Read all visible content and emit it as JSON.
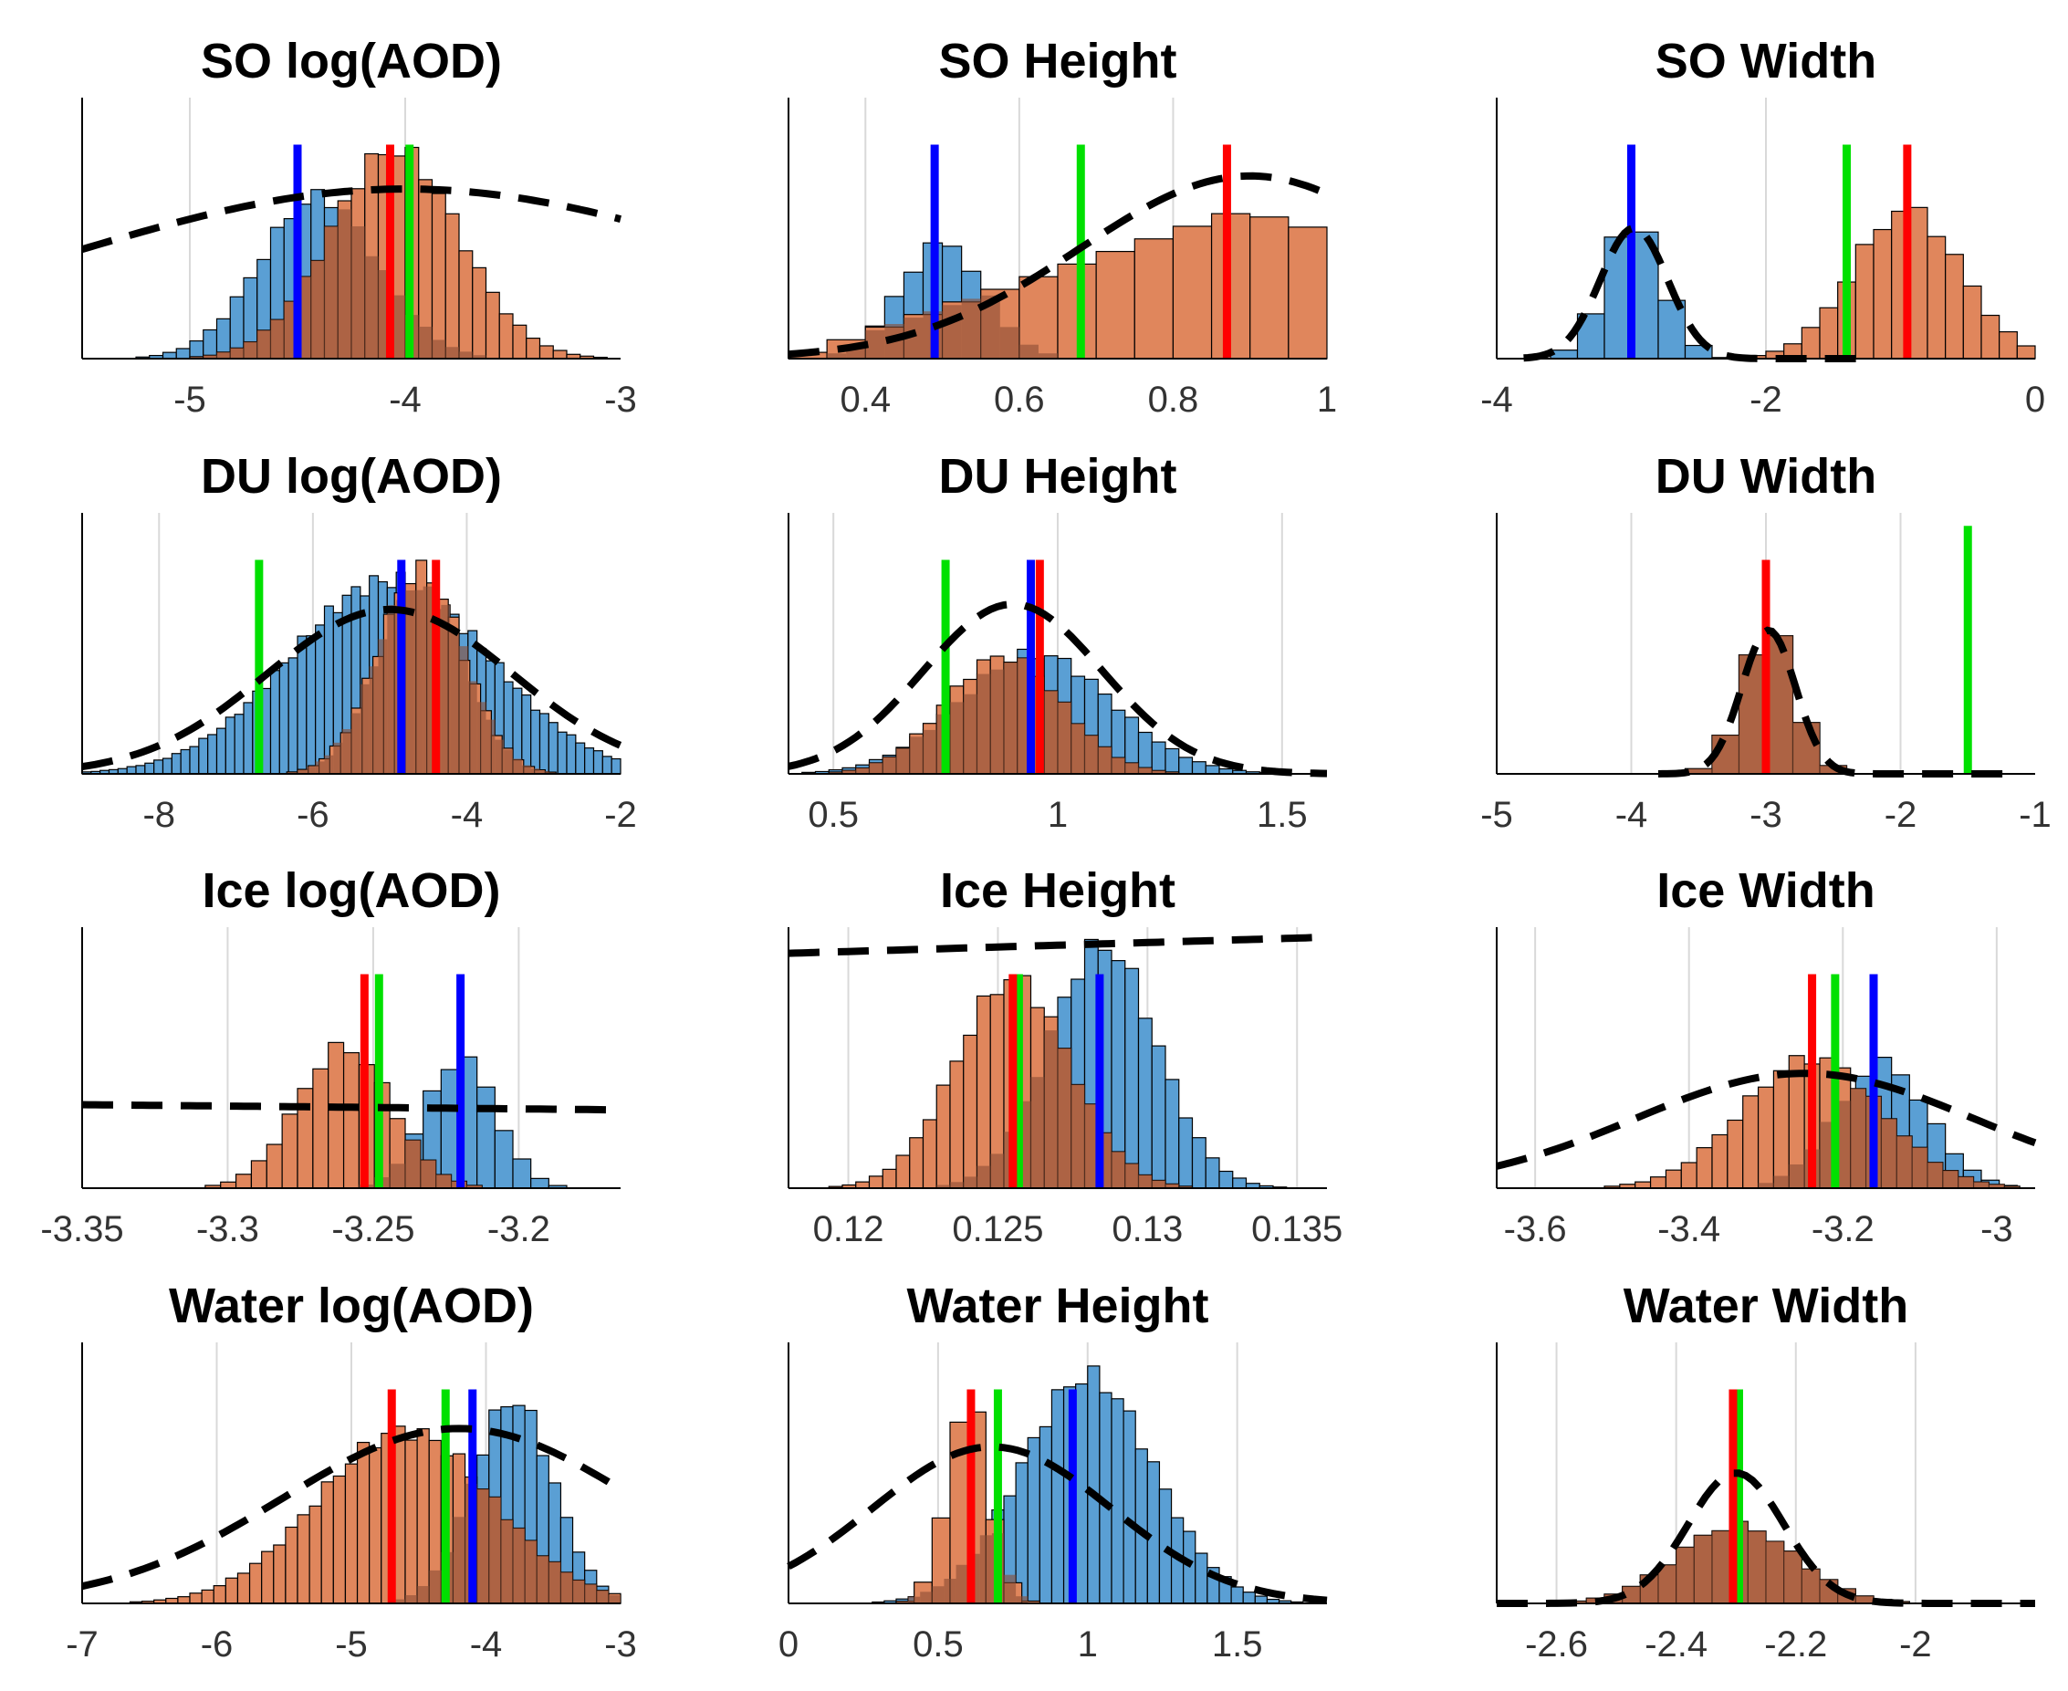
{
  "figure": {
    "rows": 4,
    "cols": 3
  },
  "colors": {
    "hist_a": "#5a9fd4",
    "hist_b": "#e0865c",
    "overlap": "#8a4d34",
    "line_blue": "#0000ff",
    "line_red": "#ff0000",
    "line_green": "#00e000",
    "prior": "#000000",
    "grid": "#d9d9d9"
  },
  "chart_data": [
    {
      "type": "bar",
      "title": "SO log(AOD)",
      "xlim": [
        -5.5,
        -3
      ],
      "ticks": [
        -5,
        -4,
        -3
      ],
      "tick_labels": [
        "-5",
        "-4",
        "-3"
      ],
      "hist_a": {
        "center": -4.4,
        "sd": 0.27,
        "amp": 0.62,
        "bins": 40
      },
      "hist_b": {
        "center": -4.05,
        "sd": 0.3,
        "amp": 0.8,
        "bins": 40
      },
      "prior": {
        "kind": "gauss",
        "center": -4.0,
        "sd": 1.6,
        "amp": 0.65
      },
      "lines": {
        "blue": -4.5,
        "red": -4.07,
        "green": -3.98
      }
    },
    {
      "type": "bar",
      "title": "SO Height",
      "xlim": [
        0.3,
        1.0
      ],
      "ticks": [
        0.4,
        0.6,
        0.8,
        1.0
      ],
      "tick_labels": [
        "0.4",
        "0.6",
        "0.8",
        "1"
      ],
      "hist_a": {
        "center": 0.5,
        "sd": 0.055,
        "amp": 0.44,
        "bins": 28
      },
      "hist_b": {
        "kind": "ramp",
        "start": 0.3,
        "end": 1.0,
        "peak": 0.89,
        "amp": 0.57,
        "bins": 14
      },
      "prior": {
        "kind": "gauss",
        "center": 0.9,
        "sd": 0.22,
        "amp": 0.7
      },
      "lines": {
        "blue": 0.49,
        "red": 0.87,
        "green": 0.68
      }
    },
    {
      "type": "bar",
      "title": "SO Width",
      "xlim": [
        -4,
        0
      ],
      "ticks": [
        -4,
        -2,
        0
      ],
      "tick_labels": [
        "-4",
        "-2",
        "0"
      ],
      "hist_a": {
        "center": -2.98,
        "sd": 0.22,
        "amp": 0.52,
        "bins": 20
      },
      "hist_b": {
        "center": -0.95,
        "sd": 0.4,
        "amp": 0.57,
        "bins": 30
      },
      "prior": {
        "kind": "gauss",
        "center": -2.98,
        "sd": 0.25,
        "amp": 0.5,
        "xmin": -3.8,
        "xmax": -1.3
      },
      "lines": {
        "blue": -3.0,
        "red": -0.95,
        "green": -1.4
      }
    },
    {
      "type": "bar",
      "title": "DU log(AOD)",
      "xlim": [
        -9,
        -2
      ],
      "ticks": [
        -8,
        -6,
        -4,
        -2
      ],
      "tick_labels": [
        "-8",
        "-6",
        "-4",
        "-2"
      ],
      "hist_a": {
        "center": -5.0,
        "sd": 1.3,
        "amp": 0.74,
        "bins": 60
      },
      "hist_b": {
        "center": -4.6,
        "sd": 0.55,
        "amp": 0.78,
        "bins": 50
      },
      "prior": {
        "kind": "gauss",
        "center": -5.0,
        "sd": 1.6,
        "amp": 0.63
      },
      "lines": {
        "blue": -4.85,
        "red": -4.4,
        "green": -6.7
      }
    },
    {
      "type": "bar",
      "title": "DU Height",
      "xlim": [
        0.4,
        1.6
      ],
      "ticks": [
        0.5,
        1.0,
        1.5
      ],
      "tick_labels": [
        "0.5",
        "1",
        "1.5"
      ],
      "hist_a": {
        "center": 0.95,
        "sd": 0.17,
        "amp": 0.46,
        "bins": 40
      },
      "hist_b": {
        "center": 0.88,
        "sd": 0.13,
        "amp": 0.45,
        "bins": 40
      },
      "prior": {
        "kind": "gauss",
        "center": 0.9,
        "sd": 0.2,
        "amp": 0.65
      },
      "lines": {
        "blue": 0.94,
        "red": 0.96,
        "green": 0.75
      }
    },
    {
      "type": "bar",
      "title": "DU Width",
      "xlim": [
        -5,
        -1
      ],
      "ticks": [
        -5,
        -4,
        -3,
        -2,
        -1
      ],
      "tick_labels": [
        "-5",
        "-4",
        "-3",
        "-2",
        "-1"
      ],
      "hist_a": {
        "center": -2.98,
        "sd": 0.2,
        "amp": 0.55,
        "bins": 20
      },
      "hist_b": {
        "center": -2.98,
        "sd": 0.2,
        "amp": 0.55,
        "bins": 20
      },
      "prior": {
        "kind": "gauss",
        "center": -2.98,
        "sd": 0.2,
        "amp": 0.55,
        "xmin": -3.8,
        "xmax": -1.2
      },
      "lines": {
        "red": -3.0,
        "green": -1.5
      }
    },
    {
      "type": "bar",
      "title": "Ice log(AOD)",
      "xlim": [
        -3.35,
        -3.165
      ],
      "ticks": [
        -3.35,
        -3.3,
        -3.25,
        -3.2
      ],
      "tick_labels": [
        "-3.35",
        "-3.3",
        "-3.25",
        "-3.2"
      ],
      "hist_a": {
        "center": -3.22,
        "sd": 0.012,
        "amp": 0.5,
        "bins": 30
      },
      "hist_b": {
        "center": -3.26,
        "sd": 0.016,
        "amp": 0.54,
        "bins": 35
      },
      "prior": {
        "kind": "line",
        "y0": 0.32,
        "y1": 0.3
      },
      "lines": {
        "blue": -3.22,
        "red": -3.253,
        "green": -3.248
      }
    },
    {
      "type": "bar",
      "title": "Ice Height",
      "xlim": [
        0.118,
        0.136
      ],
      "ticks": [
        0.12,
        0.125,
        0.13,
        0.135
      ],
      "tick_labels": [
        "0.12",
        "0.125",
        "0.13",
        "0.135"
      ],
      "hist_a": {
        "center": 0.1285,
        "sd": 0.0018,
        "amp": 0.93,
        "bins": 40
      },
      "hist_b": {
        "center": 0.1255,
        "sd": 0.0019,
        "amp": 0.8,
        "bins": 40
      },
      "prior": {
        "kind": "line",
        "y0": 0.9,
        "y1": 0.96,
        "xmax": 0.1355
      },
      "lines": {
        "blue": 0.1284,
        "red": 0.1255,
        "green": 0.1257
      }
    },
    {
      "type": "bar",
      "title": "Ice Width",
      "xlim": [
        -3.65,
        -2.95
      ],
      "ticks": [
        -3.6,
        -3.4,
        -3.2,
        -3.0
      ],
      "tick_labels": [
        "-3.6",
        "-3.4",
        "-3.2",
        "-3"
      ],
      "hist_a": {
        "center": -3.15,
        "sd": 0.06,
        "amp": 0.48,
        "bins": 30
      },
      "hist_b": {
        "center": -3.24,
        "sd": 0.09,
        "amp": 0.5,
        "bins": 35
      },
      "prior": {
        "kind": "gauss",
        "center": -3.25,
        "sd": 0.22,
        "amp": 0.44
      },
      "lines": {
        "blue": -3.16,
        "red": -3.24,
        "green": -3.21
      }
    },
    {
      "type": "bar",
      "title": "Water log(AOD)",
      "xlim": [
        -7,
        -3
      ],
      "ticks": [
        -7,
        -6,
        -5,
        -4,
        -3
      ],
      "tick_labels": [
        "-7",
        "-6",
        "-5",
        "-4",
        "-3"
      ],
      "hist_a": {
        "center": -3.8,
        "sd": 0.3,
        "amp": 0.78,
        "bins": 45
      },
      "hist_b": {
        "center": -4.6,
        "sd": 0.65,
        "amp": 0.66,
        "bins": 45
      },
      "prior": {
        "kind": "gauss",
        "center": -4.2,
        "sd": 1.3,
        "amp": 0.67
      },
      "lines": {
        "blue": -4.1,
        "red": -4.7,
        "green": -4.3
      }
    },
    {
      "type": "bar",
      "title": "Water Height",
      "xlim": [
        0,
        1.8
      ],
      "ticks": [
        0,
        0.5,
        1.0,
        1.5
      ],
      "tick_labels": [
        "0",
        "0.5",
        "1",
        "1.5"
      ],
      "hist_a": {
        "center": 1.0,
        "sd": 0.22,
        "amp": 0.87,
        "bins": 45
      },
      "hist_b": {
        "center": 0.6,
        "sd": 0.07,
        "amp": 0.77,
        "bins": 30
      },
      "prior": {
        "kind": "gauss",
        "center": 0.68,
        "sd": 0.4,
        "amp": 0.6
      },
      "lines": {
        "blue": 0.95,
        "red": 0.61,
        "green": 0.7
      }
    },
    {
      "type": "bar",
      "title": "Water Width",
      "xlim": [
        -2.7,
        -1.8
      ],
      "ticks": [
        -2.6,
        -2.4,
        -2.2,
        -2.0
      ],
      "tick_labels": [
        "-2.6",
        "-2.4",
        "-2.2",
        "-2"
      ],
      "hist_a": {
        "center": -2.3,
        "sd": 0.1,
        "amp": 0.3,
        "bins": 30
      },
      "hist_b": {
        "center": -2.3,
        "sd": 0.1,
        "amp": 0.3,
        "bins": 30
      },
      "prior": {
        "kind": "gauss",
        "center": -2.3,
        "sd": 0.08,
        "amp": 0.5
      },
      "lines": {
        "red": -2.305,
        "green": -2.295
      }
    }
  ]
}
